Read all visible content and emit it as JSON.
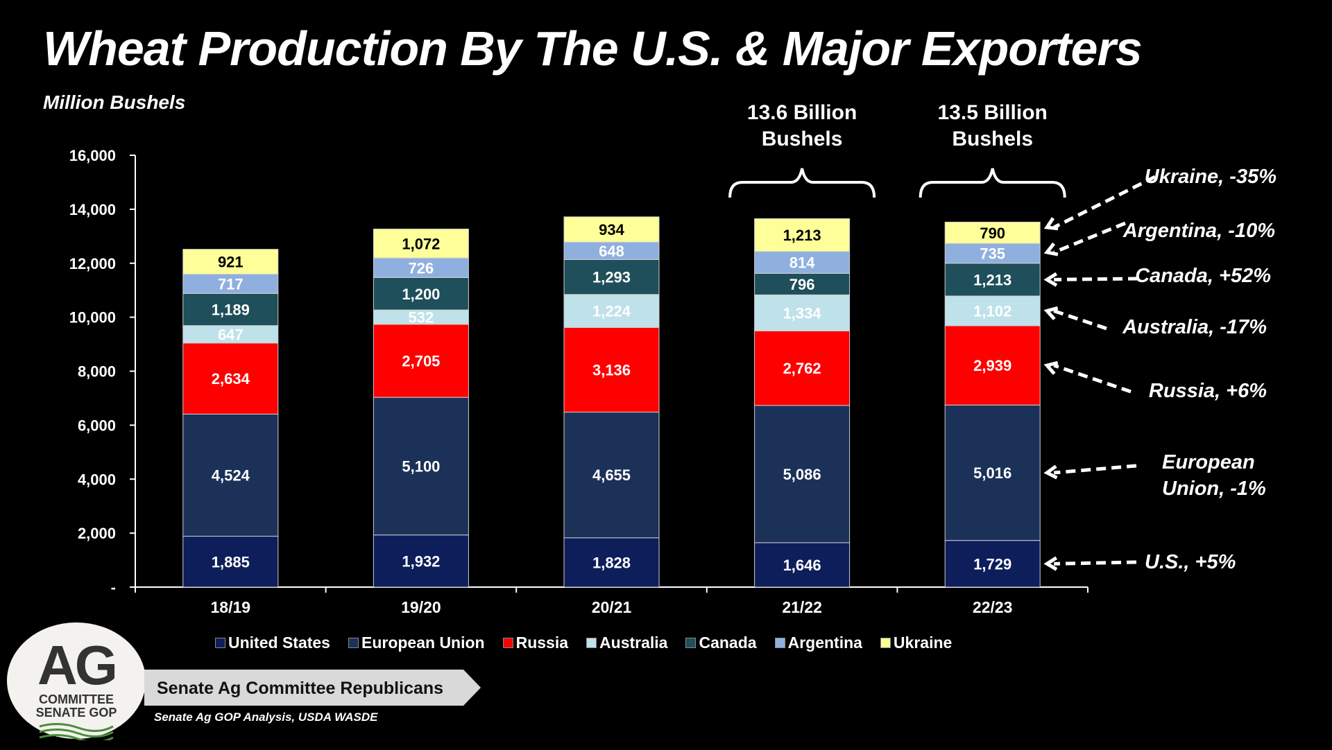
{
  "title": "Wheat Production By The U.S. & Major Exporters",
  "subtitle": "Million Bushels",
  "colors": {
    "United States": "#0e1e5b",
    "European Union": "#1b3158",
    "Russia": "#ff0000",
    "Australia": "#bfe1ea",
    "Canada": "#1e4f5a",
    "Argentina": "#8fb0de",
    "Ukraine": "#ffff99"
  },
  "chart_data": {
    "type": "bar",
    "stacked": true,
    "title": "Wheat Production By The U.S. & Major Exporters",
    "ylabel": "Million Bushels",
    "ylim": [
      0,
      16000
    ],
    "yticks": [
      "-",
      "2,000",
      "4,000",
      "6,000",
      "8,000",
      "10,000",
      "12,000",
      "14,000",
      "16,000"
    ],
    "categories": [
      "18/19",
      "19/20",
      "20/21",
      "21/22",
      "22/23"
    ],
    "series": [
      {
        "name": "United States",
        "values": [
          1885,
          1932,
          1828,
          1646,
          1729
        ],
        "labels": [
          "1,885",
          "1,932",
          "1,828",
          "1,646",
          "1,729"
        ]
      },
      {
        "name": "European Union",
        "values": [
          4524,
          5100,
          4655,
          5086,
          5016
        ],
        "labels": [
          "4,524",
          "5,100",
          "4,655",
          "5,086",
          "5,016"
        ]
      },
      {
        "name": "Russia",
        "values": [
          2634,
          2705,
          3136,
          2762,
          2939
        ],
        "labels": [
          "2,634",
          "2,705",
          "3,136",
          "2,762",
          "2,939"
        ]
      },
      {
        "name": "Australia",
        "values": [
          647,
          532,
          1224,
          1334,
          1102
        ],
        "labels": [
          "647",
          "532",
          "1,224",
          "1,334",
          "1,102"
        ]
      },
      {
        "name": "Canada",
        "values": [
          1189,
          1200,
          1293,
          796,
          1213
        ],
        "labels": [
          "1,189",
          "1,200",
          "1,293",
          "796",
          "1,213"
        ]
      },
      {
        "name": "Argentina",
        "values": [
          717,
          726,
          648,
          814,
          735
        ],
        "labels": [
          "717",
          "726",
          "648",
          "814",
          "735"
        ]
      },
      {
        "name": "Ukraine",
        "values": [
          921,
          1072,
          934,
          1213,
          790
        ],
        "labels": [
          "921",
          "1,072",
          "934",
          "1,213",
          "790"
        ]
      }
    ],
    "totals_annotations": [
      {
        "category": "21/22",
        "lines": [
          "13.6 Billion",
          "Bushels"
        ]
      },
      {
        "category": "22/23",
        "lines": [
          "13.5 Billion",
          "Bushels"
        ]
      }
    ],
    "change_annotations": [
      {
        "series": "Ukraine",
        "lines": [
          "Ukraine,  -35%"
        ]
      },
      {
        "series": "Argentina",
        "lines": [
          "Argentina,  -10%"
        ]
      },
      {
        "series": "Canada",
        "lines": [
          "Canada,  +52%"
        ]
      },
      {
        "series": "Australia",
        "lines": [
          "Australia,  -17%"
        ]
      },
      {
        "series": "Russia",
        "lines": [
          "Russia,  +6%"
        ]
      },
      {
        "series": "European Union",
        "lines": [
          "European",
          "Union,  -1%"
        ]
      },
      {
        "series": "United States",
        "lines": [
          "U.S.,  +5%"
        ]
      }
    ],
    "legend": [
      "United States",
      "European Union",
      "Russia",
      "Australia",
      "Canada",
      "Argentina",
      "Ukraine"
    ],
    "legend_position": "bottom"
  },
  "logo": {
    "big": "AG",
    "line1": "COMMITTEE",
    "line2": "SENATE GOP"
  },
  "banner": "Senate Ag Committee Republicans",
  "source": "Senate Ag GOP Analysis, USDA WASDE"
}
